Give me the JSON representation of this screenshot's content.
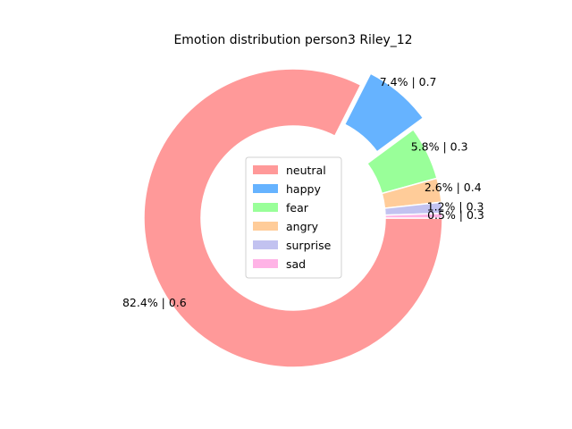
{
  "chart_data": {
    "type": "pie",
    "subtype": "donut",
    "title": "Emotion distribution person3 Riley_12",
    "slices": [
      {
        "label": "neutral",
        "percent": 82.4,
        "score": "0.6",
        "color": "#ff9999",
        "explode": false
      },
      {
        "label": "happy",
        "percent": 7.4,
        "score": "0.7",
        "color": "#66b3ff",
        "explode": true
      },
      {
        "label": "fear",
        "percent": 5.8,
        "score": "0.3",
        "color": "#99ff99",
        "explode": false
      },
      {
        "label": "angry",
        "percent": 2.6,
        "score": "0.4",
        "color": "#ffcc99",
        "explode": false
      },
      {
        "label": "surprise",
        "percent": 1.2,
        "score": "0.3",
        "color": "#c2c2f0",
        "explode": false
      },
      {
        "label": "sad",
        "percent": 0.5,
        "score": "0.3",
        "color": "#ffb3e6",
        "explode": false
      }
    ],
    "start_angle_deg": 0,
    "direction": "clockwise",
    "legend_position": "center"
  }
}
